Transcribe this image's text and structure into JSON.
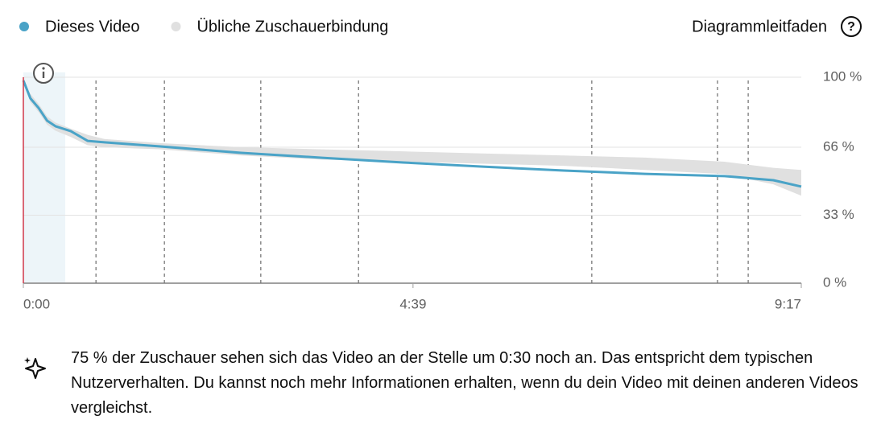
{
  "chart_data": {
    "type": "retention",
    "guide_link": "Diagrammleitfaden",
    "x": [
      0,
      5,
      11,
      17,
      23,
      34,
      46,
      58,
      98,
      156,
      214,
      272,
      329,
      387,
      445,
      502,
      537,
      557
    ],
    "series": [
      {
        "name": "Dieses Video",
        "color": "#4aa3c7",
        "values": [
          98.4,
          89.8,
          85,
          78.9,
          76.2,
          73.8,
          69.1,
          68.4,
          66.4,
          63.3,
          60.9,
          58.6,
          56.6,
          54.7,
          53.1,
          52,
          50,
          46.9
        ]
      },
      {
        "name": "Übliche Zuschauerbindung",
        "color": "#e0e0e0",
        "high": [
          98,
          92,
          87,
          81,
          78,
          75,
          72,
          70,
          68,
          66,
          65,
          64,
          63,
          62,
          61,
          59,
          56,
          55
        ],
        "low": [
          98,
          88,
          83,
          77,
          74,
          71,
          67,
          66,
          65,
          62,
          60,
          59,
          58,
          57,
          55,
          53,
          48,
          42.5
        ]
      }
    ],
    "highlight_x": [
      0,
      30
    ],
    "markers": [
      52,
      101,
      170,
      240,
      407,
      497,
      519
    ],
    "xlim": [
      0,
      557
    ],
    "xticks": [
      {
        "value": 0,
        "label": "0:00"
      },
      {
        "value": 279,
        "label": "4:39"
      },
      {
        "value": 557,
        "label": "9:17"
      }
    ],
    "ylim": [
      0,
      100
    ],
    "yticks": [
      {
        "value": 100,
        "label": "100 %"
      },
      {
        "value": 66,
        "label": "66 %"
      },
      {
        "value": 33,
        "label": "33 %"
      },
      {
        "value": 0,
        "label": "0 %"
      }
    ],
    "grid": true
  },
  "insight": "75 % der Zuschauer sehen sich das Video an der Stelle um 0:30 noch an. Das entspricht dem typischen Nutzerverhalten. Du kannst noch mehr Informationen erhalten, wenn du dein Video mit deinen anderen Videos vergleichst."
}
